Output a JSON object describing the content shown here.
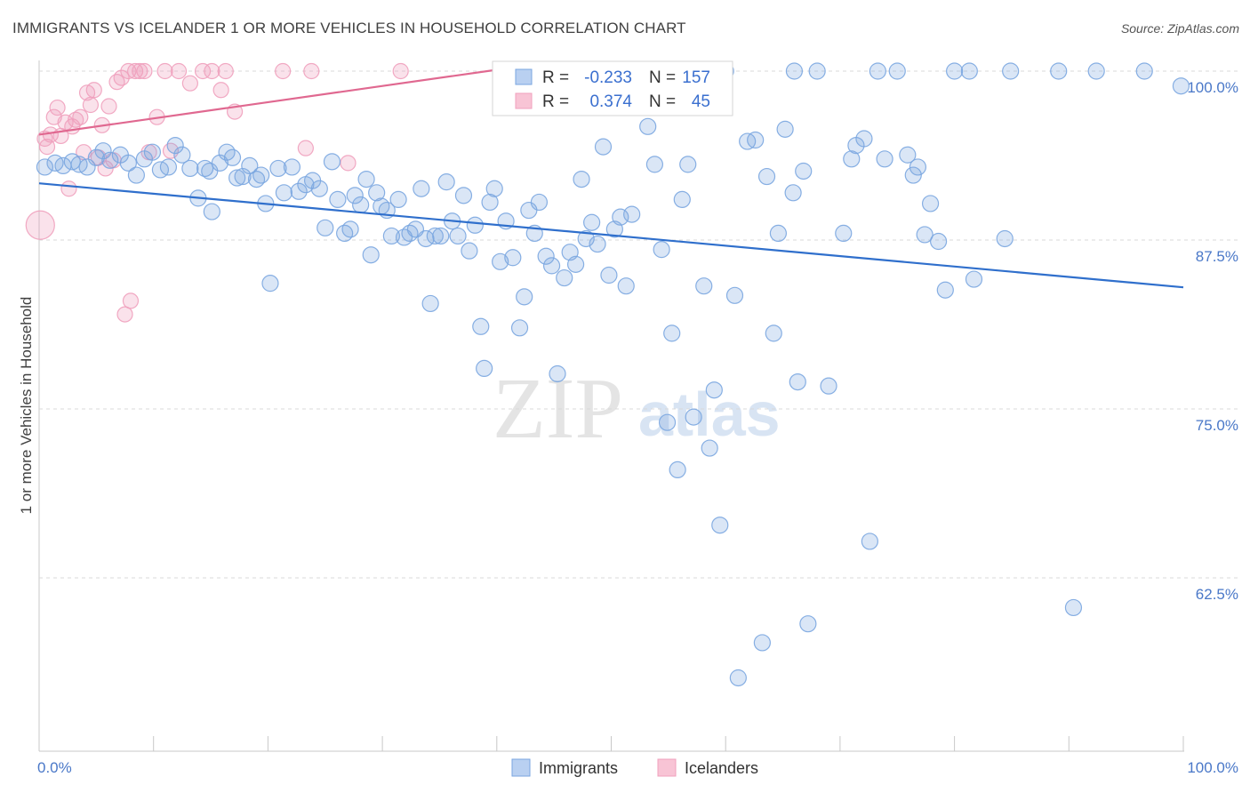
{
  "title": "IMMIGRANTS VS ICELANDER 1 OR MORE VEHICLES IN HOUSEHOLD CORRELATION CHART",
  "source": "Source: ZipAtlas.com",
  "watermark": {
    "zip": "ZIP",
    "atlas": "atlas"
  },
  "chart_data": {
    "type": "scatter",
    "title": "IMMIGRANTS VS ICELANDER 1 OR MORE VEHICLES IN HOUSEHOLD CORRELATION CHART",
    "xlabel": "",
    "ylabel": "1 or more Vehicles in Household",
    "xlim": [
      0,
      100
    ],
    "ylim": [
      50.5,
      101
    ],
    "x_tick_labels": [
      "0.0%",
      "100.0%"
    ],
    "y_ticks": [
      62.5,
      75.0,
      87.5,
      100.0
    ],
    "y_tick_labels": [
      "62.5%",
      "75.0%",
      "87.5%",
      "100.0%"
    ],
    "legend_position": "top-center",
    "stats": [
      {
        "r_label": "R =",
        "r_value": "-0.233",
        "n_label": "N =",
        "n_value": "157"
      },
      {
        "r_label": "R =",
        "r_value": "0.374",
        "n_label": "N =",
        "n_value": "45"
      }
    ],
    "series": [
      {
        "name": "Immigrants",
        "color": "#7aa6e0",
        "line_color": "#2f6fcc",
        "trend": [
          [
            0,
            91.7
          ],
          [
            100,
            84.0
          ]
        ],
        "points": [
          [
            0.5,
            92.9
          ],
          [
            1.4,
            93.2
          ],
          [
            2.1,
            93.0
          ],
          [
            2.9,
            93.3
          ],
          [
            3.5,
            93.1
          ],
          [
            4.2,
            92.9
          ],
          [
            5.0,
            93.6
          ],
          [
            5.6,
            94.1
          ],
          [
            6.2,
            93.4
          ],
          [
            7.1,
            93.8
          ],
          [
            7.8,
            93.2
          ],
          [
            8.5,
            92.3
          ],
          [
            9.2,
            93.5
          ],
          [
            9.9,
            94.0
          ],
          [
            10.6,
            92.7
          ],
          [
            11.3,
            92.9
          ],
          [
            11.9,
            94.5
          ],
          [
            12.5,
            93.8
          ],
          [
            13.2,
            92.8
          ],
          [
            13.9,
            90.6
          ],
          [
            14.5,
            92.8
          ],
          [
            14.9,
            92.6
          ],
          [
            15.1,
            89.6
          ],
          [
            15.8,
            93.2
          ],
          [
            16.4,
            94.0
          ],
          [
            16.9,
            93.6
          ],
          [
            17.3,
            92.1
          ],
          [
            17.8,
            92.2
          ],
          [
            18.4,
            93.0
          ],
          [
            19.0,
            92.0
          ],
          [
            19.4,
            92.3
          ],
          [
            19.8,
            90.2
          ],
          [
            20.2,
            84.3
          ],
          [
            20.9,
            92.8
          ],
          [
            21.4,
            91.0
          ],
          [
            22.1,
            92.9
          ],
          [
            22.7,
            91.1
          ],
          [
            23.3,
            91.6
          ],
          [
            23.9,
            91.9
          ],
          [
            24.5,
            91.3
          ],
          [
            25.0,
            88.4
          ],
          [
            25.6,
            93.3
          ],
          [
            26.1,
            90.5
          ],
          [
            26.7,
            88.0
          ],
          [
            27.2,
            88.3
          ],
          [
            27.6,
            90.8
          ],
          [
            28.1,
            90.1
          ],
          [
            28.6,
            92.0
          ],
          [
            29.0,
            86.4
          ],
          [
            29.5,
            91.0
          ],
          [
            29.9,
            90.0
          ],
          [
            30.4,
            89.7
          ],
          [
            30.8,
            87.8
          ],
          [
            31.4,
            90.5
          ],
          [
            31.9,
            87.7
          ],
          [
            32.4,
            88.0
          ],
          [
            32.9,
            88.3
          ],
          [
            33.4,
            91.3
          ],
          [
            33.8,
            87.6
          ],
          [
            34.2,
            82.8
          ],
          [
            34.6,
            87.8
          ],
          [
            35.1,
            87.8
          ],
          [
            35.6,
            91.8
          ],
          [
            36.1,
            88.9
          ],
          [
            36.6,
            87.8
          ],
          [
            37.1,
            90.8
          ],
          [
            37.6,
            86.7
          ],
          [
            38.1,
            88.6
          ],
          [
            38.6,
            81.1
          ],
          [
            38.9,
            78.0
          ],
          [
            39.4,
            90.3
          ],
          [
            39.8,
            91.3
          ],
          [
            40.3,
            85.9
          ],
          [
            40.8,
            88.9
          ],
          [
            41.4,
            86.2
          ],
          [
            42.0,
            81.0
          ],
          [
            42.4,
            83.3
          ],
          [
            42.8,
            89.7
          ],
          [
            43.3,
            88.0
          ],
          [
            43.7,
            90.3
          ],
          [
            44.3,
            86.3
          ],
          [
            44.8,
            85.6
          ],
          [
            45.3,
            77.6
          ],
          [
            45.9,
            84.7
          ],
          [
            46.4,
            86.6
          ],
          [
            46.9,
            85.7
          ],
          [
            47.4,
            92.0
          ],
          [
            47.8,
            87.6
          ],
          [
            48.3,
            88.8
          ],
          [
            48.8,
            87.2
          ],
          [
            49.3,
            94.4
          ],
          [
            49.8,
            84.9
          ],
          [
            50.3,
            88.3
          ],
          [
            50.8,
            89.2
          ],
          [
            51.3,
            84.1
          ],
          [
            51.8,
            89.4
          ],
          [
            53.2,
            95.9
          ],
          [
            53.8,
            93.1
          ],
          [
            54.4,
            86.8
          ],
          [
            54.9,
            74.0
          ],
          [
            55.3,
            80.6
          ],
          [
            55.8,
            70.5
          ],
          [
            56.2,
            90.5
          ],
          [
            56.7,
            93.1
          ],
          [
            57.2,
            74.4
          ],
          [
            58.1,
            84.1
          ],
          [
            58.6,
            72.1
          ],
          [
            59.0,
            76.4
          ],
          [
            59.5,
            66.4
          ],
          [
            60.0,
            100.0
          ],
          [
            60.8,
            83.4
          ],
          [
            61.1,
            55.1
          ],
          [
            61.9,
            94.8
          ],
          [
            62.6,
            94.9
          ],
          [
            63.2,
            57.7
          ],
          [
            63.6,
            92.2
          ],
          [
            64.2,
            80.6
          ],
          [
            64.6,
            88.0
          ],
          [
            65.2,
            95.7
          ],
          [
            65.9,
            91.0
          ],
          [
            66.0,
            100.0
          ],
          [
            66.3,
            77.0
          ],
          [
            66.8,
            92.6
          ],
          [
            67.2,
            59.1
          ],
          [
            68.0,
            100.0
          ],
          [
            69.0,
            76.7
          ],
          [
            70.3,
            88.0
          ],
          [
            71.0,
            93.5
          ],
          [
            71.4,
            94.5
          ],
          [
            72.1,
            95.0
          ],
          [
            72.6,
            65.2
          ],
          [
            73.3,
            100.0
          ],
          [
            73.9,
            93.5
          ],
          [
            75.0,
            100.0
          ],
          [
            75.9,
            93.8
          ],
          [
            76.4,
            92.3
          ],
          [
            76.8,
            92.9
          ],
          [
            77.4,
            87.9
          ],
          [
            77.9,
            90.2
          ],
          [
            78.6,
            87.4
          ],
          [
            79.2,
            83.8
          ],
          [
            80.0,
            100.0
          ],
          [
            81.3,
            100.0
          ],
          [
            81.7,
            84.6
          ],
          [
            84.4,
            87.6
          ],
          [
            84.9,
            100.0
          ],
          [
            89.1,
            100.0
          ],
          [
            90.4,
            60.3
          ],
          [
            92.4,
            100.0
          ],
          [
            96.6,
            100.0
          ],
          [
            99.8,
            98.9
          ]
        ]
      },
      {
        "name": "Icelanders",
        "color": "#f0a0bd",
        "line_color": "#e06890",
        "trend": [
          [
            0,
            95.3
          ],
          [
            40,
            100.1
          ]
        ],
        "points": [
          [
            0.1,
            88.6
          ],
          [
            0.5,
            95.0
          ],
          [
            0.7,
            94.4
          ],
          [
            1.0,
            95.3
          ],
          [
            1.3,
            96.6
          ],
          [
            1.6,
            97.3
          ],
          [
            1.9,
            95.2
          ],
          [
            2.3,
            96.2
          ],
          [
            2.6,
            91.3
          ],
          [
            2.9,
            95.9
          ],
          [
            3.2,
            96.4
          ],
          [
            3.6,
            96.6
          ],
          [
            3.9,
            94.0
          ],
          [
            4.2,
            98.4
          ],
          [
            4.5,
            97.5
          ],
          [
            4.8,
            98.6
          ],
          [
            5.2,
            93.6
          ],
          [
            5.5,
            96.0
          ],
          [
            5.8,
            92.8
          ],
          [
            6.1,
            97.4
          ],
          [
            6.5,
            93.4
          ],
          [
            6.8,
            99.2
          ],
          [
            7.2,
            99.5
          ],
          [
            7.5,
            82.0
          ],
          [
            7.8,
            100.0
          ],
          [
            8.0,
            83.0
          ],
          [
            8.4,
            100.0
          ],
          [
            8.8,
            100.0
          ],
          [
            9.2,
            100.0
          ],
          [
            9.6,
            94.0
          ],
          [
            10.3,
            96.6
          ],
          [
            11.0,
            100.0
          ],
          [
            11.5,
            94.1
          ],
          [
            12.2,
            100.0
          ],
          [
            13.2,
            99.1
          ],
          [
            14.3,
            100.0
          ],
          [
            15.1,
            100.0
          ],
          [
            15.9,
            98.6
          ],
          [
            16.3,
            100.0
          ],
          [
            17.1,
            97.0
          ],
          [
            21.3,
            100.0
          ],
          [
            23.3,
            94.3
          ],
          [
            23.8,
            100.0
          ],
          [
            27.0,
            93.2
          ],
          [
            31.6,
            100.0
          ]
        ]
      }
    ]
  },
  "legend": {
    "series": [
      {
        "label": "Immigrants"
      },
      {
        "label": "Icelanders"
      }
    ]
  }
}
